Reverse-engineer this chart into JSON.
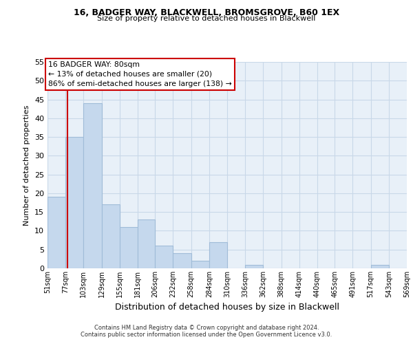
{
  "title1": "16, BADGER WAY, BLACKWELL, BROMSGROVE, B60 1EX",
  "title2": "Size of property relative to detached houses in Blackwell",
  "xlabel": "Distribution of detached houses by size in Blackwell",
  "ylabel": "Number of detached properties",
  "bin_edges": [
    51,
    77,
    103,
    129,
    155,
    181,
    206,
    232,
    258,
    284,
    310,
    336,
    362,
    388,
    414,
    440,
    465,
    491,
    517,
    543,
    569
  ],
  "bar_heights": [
    19,
    35,
    44,
    17,
    11,
    13,
    6,
    4,
    2,
    7,
    0,
    1,
    0,
    0,
    0,
    0,
    0,
    0,
    1,
    0
  ],
  "bar_color": "#c5d8ed",
  "bar_edgecolor": "#a0bcd8",
  "vline_x": 80,
  "vline_color": "#cc0000",
  "ylim": [
    0,
    55
  ],
  "yticks": [
    0,
    5,
    10,
    15,
    20,
    25,
    30,
    35,
    40,
    45,
    50,
    55
  ],
  "xtick_labels": [
    "51sqm",
    "77sqm",
    "103sqm",
    "129sqm",
    "155sqm",
    "181sqm",
    "206sqm",
    "232sqm",
    "258sqm",
    "284sqm",
    "310sqm",
    "336sqm",
    "362sqm",
    "388sqm",
    "414sqm",
    "440sqm",
    "465sqm",
    "491sqm",
    "517sqm",
    "543sqm",
    "569sqm"
  ],
  "annotation_title": "16 BADGER WAY: 80sqm",
  "annotation_line1": "← 13% of detached houses are smaller (20)",
  "annotation_line2": "86% of semi-detached houses are larger (138) →",
  "annotation_box_facecolor": "#ffffff",
  "annotation_box_edgecolor": "#cc0000",
  "footer1": "Contains HM Land Registry data © Crown copyright and database right 2024.",
  "footer2": "Contains public sector information licensed under the Open Government Licence v3.0.",
  "background_color": "#ffffff",
  "axes_facecolor": "#e8f0f8",
  "grid_color": "#c8d8e8"
}
